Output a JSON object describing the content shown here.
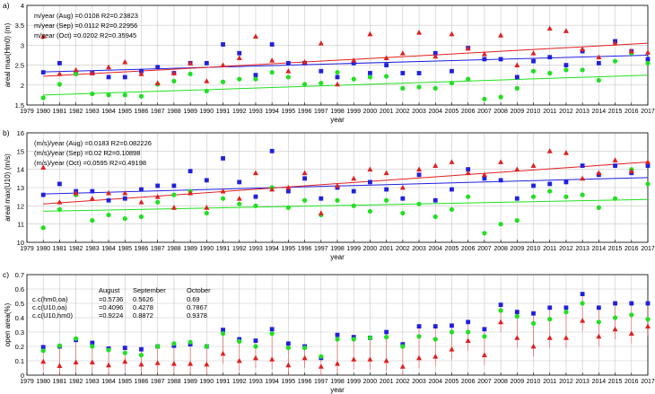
{
  "chart_data": [
    {
      "type": "scatter",
      "panel_label": "a)",
      "xlabel": "year",
      "ylabel": "areal max(Hm0) (m)",
      "xlim": [
        1979,
        2017
      ],
      "ylim": [
        1.5,
        4.0
      ],
      "yticks": [
        1.5,
        2,
        2.5,
        3,
        3.5,
        4
      ],
      "ytick_labels": [
        "1.5",
        "2",
        "2.5",
        "3",
        "3.5",
        "4"
      ],
      "grid": true,
      "annotations": [
        "m/year (Aug) =0.0108  R2=0.23823",
        "m/year (Sep) =0.0112  R2=0.22956",
        "m/year (Oct) =0.0202  R2=0.35945"
      ],
      "series": [
        {
          "label": "Aug",
          "color": "#2020e0",
          "marker": "square",
          "values": [
            2.32,
            2.55,
            2.3,
            2.3,
            2.2,
            2.2,
            2.35,
            2.45,
            2.3,
            2.55,
            2.55,
            3.02,
            2.8,
            2.25,
            3.02,
            2.55,
            2.55,
            2.35,
            2.2,
            2.55,
            2.3,
            2.5,
            2.3,
            2.3,
            2.8,
            2.35,
            2.93,
            2.65,
            2.65,
            2.2,
            2.6,
            2.7,
            2.5,
            2.85,
            2.55,
            3.1,
            2.85,
            2.65
          ],
          "trend": [
            2.33,
            2.75
          ]
        },
        {
          "label": "Sep",
          "color": "#20e020",
          "marker": "circle",
          "values": [
            1.68,
            2.02,
            2.28,
            1.78,
            1.75,
            1.75,
            1.72,
            2.02,
            2.1,
            2.28,
            1.85,
            2.08,
            2.15,
            2.15,
            2.32,
            2.2,
            2.02,
            2.05,
            2.32,
            2.15,
            2.2,
            2.22,
            1.92,
            1.95,
            1.92,
            2.05,
            2.15,
            1.65,
            1.7,
            1.92,
            2.35,
            2.3,
            2.38,
            2.38,
            2.12,
            2.6,
            2.8,
            2.55
          ],
          "trend": [
            1.75,
            2.25
          ]
        },
        {
          "label": "Oct",
          "color": "#e02020",
          "marker": "triangle",
          "values": [
            3.22,
            2.28,
            2.38,
            2.3,
            2.45,
            2.58,
            2.28,
            2.05,
            2.3,
            2.55,
            2.1,
            2.5,
            2.68,
            3.22,
            2.62,
            2.35,
            2.58,
            3.05,
            2.02,
            2.62,
            3.28,
            2.68,
            2.8,
            3.32,
            2.72,
            3.28,
            2.92,
            2.78,
            3.25,
            2.5,
            2.8,
            3.42,
            3.36,
            2.9,
            2.7,
            3.05,
            2.85,
            2.82
          ],
          "trend": [
            2.22,
            3.05
          ]
        }
      ]
    },
    {
      "type": "scatter",
      "panel_label": "b)",
      "xlabel": "year",
      "ylabel": "areal max(U10) (m/s)",
      "xlim": [
        1979,
        2017
      ],
      "ylim": [
        10,
        16
      ],
      "yticks": [
        10,
        11,
        12,
        13,
        14,
        15,
        16
      ],
      "ytick_labels": [
        "10",
        "11",
        "12",
        "13",
        "14",
        "15",
        "16"
      ],
      "grid": true,
      "annotations": [
        "(m/s)/year (Aug) =0.0183  R2=0.082226",
        "(m/s)/year (Sep) =0.02  R2=0.10898",
        "(m/s)/year (Oct) =0.0595  R2=0.49198"
      ],
      "series": [
        {
          "label": "Aug",
          "color": "#2020e0",
          "marker": "square",
          "values": [
            12.6,
            13.2,
            12.8,
            12.8,
            12.3,
            12.4,
            12.9,
            13.1,
            13.1,
            13.9,
            13.4,
            14.6,
            13.3,
            12.5,
            15.0,
            12.8,
            13.5,
            12.4,
            13.0,
            12.8,
            13.3,
            12.9,
            12.4,
            13.7,
            12.3,
            12.9,
            14.0,
            13.5,
            13.4,
            12.4,
            13.1,
            13.2,
            13.3,
            14.2,
            13.7,
            14.2,
            13.8,
            14.2
          ],
          "trend": [
            12.65,
            13.55
          ]
        },
        {
          "label": "Sep",
          "color": "#20e020",
          "marker": "circle",
          "values": [
            10.8,
            11.8,
            12.6,
            11.2,
            11.5,
            11.3,
            11.4,
            12.2,
            12.6,
            12.8,
            11.6,
            12.4,
            12.1,
            12.0,
            13.0,
            11.9,
            12.3,
            11.5,
            12.3,
            12.0,
            11.7,
            12.3,
            11.6,
            12.1,
            11.4,
            11.8,
            12.5,
            10.5,
            11.0,
            11.2,
            12.5,
            12.8,
            12.5,
            12.6,
            11.9,
            12.4,
            14.0,
            13.2
          ],
          "trend": [
            11.7,
            12.35
          ]
        },
        {
          "label": "Oct",
          "color": "#e02020",
          "marker": "triangle",
          "values": [
            14.1,
            12.2,
            12.7,
            12.4,
            12.7,
            12.7,
            12.2,
            12.5,
            11.9,
            12.7,
            11.9,
            12.8,
            12.4,
            13.8,
            12.9,
            13.0,
            13.8,
            11.6,
            13.1,
            13.5,
            14.0,
            13.8,
            13.0,
            14.0,
            14.2,
            14.4,
            13.8,
            13.7,
            14.4,
            14.0,
            14.2,
            15.0,
            14.9,
            13.5,
            13.8,
            14.5,
            13.9,
            14.4
          ],
          "trend": [
            12.1,
            14.4
          ]
        }
      ]
    },
    {
      "type": "scatter",
      "panel_label": "c)",
      "xlabel": "year",
      "ylabel": "open area(%)",
      "xlim": [
        1979,
        2017
      ],
      "ylim": [
        0,
        0.7
      ],
      "yticks": [
        0,
        0.1,
        0.2,
        0.3,
        0.4,
        0.5,
        0.6,
        0.7
      ],
      "ytick_labels": [
        "0",
        "0.1",
        "0.2",
        "0.3",
        "0.4",
        "0.5",
        "0.6",
        "0.7"
      ],
      "grid": true,
      "table": {
        "header": [
          "",
          "August",
          "September",
          "October"
        ],
        "rows": [
          [
            "c.c(hm0,oa)",
            "=0.5736",
            "0.5626",
            "0.69"
          ],
          [
            "c.c(U10,oa)",
            "=0.4096",
            "0.4278",
            "0.7867"
          ],
          [
            "c.c(U10,hm0)",
            "=0.9224",
            "0.8872",
            "0.9378"
          ]
        ]
      },
      "series": [
        {
          "label": "Aug",
          "color": "#2020e0",
          "marker": "square",
          "values": [
            0.195,
            0.2,
            0.245,
            0.225,
            0.185,
            0.19,
            0.18,
            0.2,
            0.205,
            0.215,
            0.2,
            0.315,
            0.25,
            0.24,
            0.32,
            0.22,
            0.2,
            0.12,
            0.28,
            0.265,
            0.26,
            0.3,
            0.215,
            0.34,
            0.34,
            0.345,
            0.37,
            0.32,
            0.49,
            0.44,
            0.43,
            0.47,
            0.47,
            0.565,
            0.47,
            0.5,
            0.5,
            0.5
          ]
        },
        {
          "label": "Sep",
          "color": "#20e020",
          "marker": "circle",
          "values": [
            0.17,
            0.205,
            0.255,
            0.2,
            0.175,
            0.155,
            0.14,
            0.2,
            0.22,
            0.23,
            0.2,
            0.29,
            0.235,
            0.2,
            0.29,
            0.19,
            0.19,
            0.13,
            0.25,
            0.25,
            0.26,
            0.265,
            0.2,
            0.27,
            0.25,
            0.3,
            0.3,
            0.27,
            0.45,
            0.41,
            0.36,
            0.39,
            0.44,
            0.5,
            0.37,
            0.4,
            0.42,
            0.39
          ]
        },
        {
          "label": "Oct",
          "color": "#e02020",
          "marker": "triangle",
          "values": [
            0.095,
            0.065,
            0.09,
            0.09,
            0.07,
            0.095,
            0.075,
            0.085,
            0.08,
            0.08,
            0.075,
            0.15,
            0.1,
            0.12,
            0.11,
            0.07,
            0.12,
            0.06,
            0.08,
            0.11,
            0.11,
            0.1,
            0.06,
            0.12,
            0.13,
            0.18,
            0.24,
            0.14,
            0.37,
            0.26,
            0.2,
            0.26,
            0.26,
            0.38,
            0.27,
            0.32,
            0.29,
            0.34
          ]
        }
      ]
    }
  ]
}
